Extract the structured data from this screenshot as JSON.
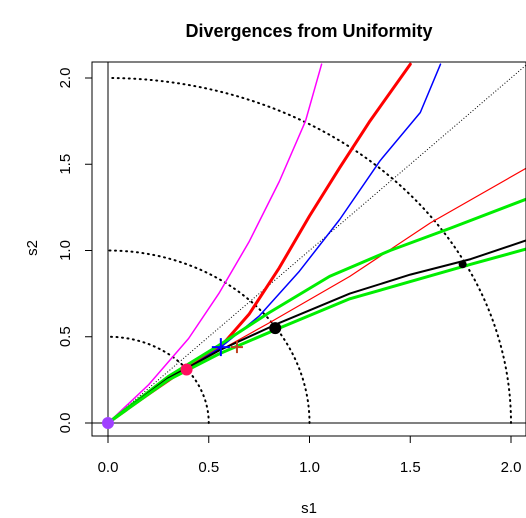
{
  "chart_data": {
    "type": "line",
    "title": "Divergences from Uniformity",
    "xlabel": "s1",
    "ylabel": "s2",
    "xlim": [
      -0.04,
      2.08
    ],
    "ylim": [
      -0.04,
      2.08
    ],
    "x_ticks": [
      "0.0",
      "0.5",
      "1.0",
      "1.5",
      "2.0"
    ],
    "y_ticks": [
      "0.0",
      "0.5",
      "1.0",
      "1.5",
      "2.0"
    ],
    "grid": false,
    "reference_lines": {
      "circles_radius": [
        0.5,
        1.0,
        2.0
      ],
      "identity_line": true,
      "axis_lines": true
    },
    "series": [
      {
        "color": "#ff00ff",
        "width": 1.5,
        "points": [
          [
            0,
            0
          ],
          [
            0.2,
            0.22
          ],
          [
            0.4,
            0.49
          ],
          [
            0.55,
            0.75
          ],
          [
            0.7,
            1.05
          ],
          [
            0.85,
            1.4
          ],
          [
            0.98,
            1.75
          ],
          [
            1.06,
            2.08
          ]
        ]
      },
      {
        "color": "#ff0000",
        "width": 3,
        "points": [
          [
            0,
            0
          ],
          [
            0.3,
            0.25
          ],
          [
            0.55,
            0.43
          ],
          [
            0.7,
            0.63
          ],
          [
            0.85,
            0.9
          ],
          [
            1.0,
            1.2
          ],
          [
            1.15,
            1.48
          ],
          [
            1.3,
            1.75
          ],
          [
            1.5,
            2.08
          ]
        ]
      },
      {
        "color": "#0000ff",
        "width": 1.5,
        "points": [
          [
            0,
            0
          ],
          [
            0.3,
            0.25
          ],
          [
            0.55,
            0.43
          ],
          [
            0.75,
            0.62
          ],
          [
            0.95,
            0.88
          ],
          [
            1.15,
            1.18
          ],
          [
            1.35,
            1.52
          ],
          [
            1.55,
            1.8
          ],
          [
            1.65,
            2.08
          ]
        ]
      },
      {
        "color": "#ff0000",
        "width": 1.2,
        "points": [
          [
            0,
            0
          ],
          [
            0.4,
            0.32
          ],
          [
            0.8,
            0.58
          ],
          [
            1.2,
            0.85
          ],
          [
            1.6,
            1.16
          ],
          [
            2.08,
            1.48
          ]
        ]
      },
      {
        "color": "#00ee00",
        "width": 3,
        "points": [
          [
            0,
            0
          ],
          [
            0.3,
            0.27
          ],
          [
            0.55,
            0.45
          ],
          [
            0.8,
            0.64
          ],
          [
            1.1,
            0.85
          ],
          [
            1.4,
            1.0
          ],
          [
            1.7,
            1.13
          ],
          [
            2.08,
            1.3
          ]
        ]
      },
      {
        "color": "#000000",
        "width": 2,
        "points": [
          [
            0,
            0
          ],
          [
            0.3,
            0.26
          ],
          [
            0.55,
            0.42
          ],
          [
            0.85,
            0.58
          ],
          [
            1.2,
            0.75
          ],
          [
            1.5,
            0.86
          ],
          [
            1.8,
            0.95
          ],
          [
            2.08,
            1.06
          ]
        ]
      },
      {
        "color": "#00ee00",
        "width": 3,
        "points": [
          [
            0,
            0
          ],
          [
            0.3,
            0.25
          ],
          [
            0.55,
            0.4
          ],
          [
            0.85,
            0.55
          ],
          [
            1.2,
            0.72
          ],
          [
            1.5,
            0.82
          ],
          [
            1.8,
            0.92
          ],
          [
            2.08,
            1.01
          ]
        ]
      }
    ],
    "markers": [
      {
        "shape": "circle",
        "color": "#a040ff",
        "x": 0.0,
        "y": 0.0,
        "size": 6
      },
      {
        "shape": "circle",
        "color": "#ff1060",
        "x": 0.39,
        "y": 0.31,
        "size": 6
      },
      {
        "shape": "circle",
        "color": "#000000",
        "x": 0.83,
        "y": 0.55,
        "size": 6
      },
      {
        "shape": "circle",
        "color": "#000000",
        "x": 1.76,
        "y": 0.92,
        "size": 4
      },
      {
        "shape": "plus",
        "color": "#0000ff",
        "x": 0.56,
        "y": 0.44,
        "size": 9
      },
      {
        "shape": "plus",
        "color": "#c04020",
        "x": 0.64,
        "y": 0.44,
        "size": 6
      }
    ]
  }
}
